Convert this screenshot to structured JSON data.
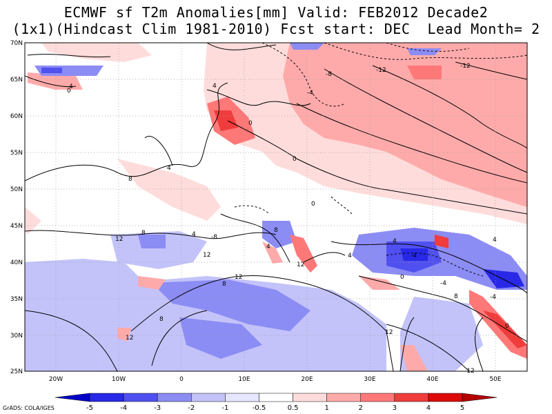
{
  "title": {
    "line1": "ECMWF sf T2m Anomalies[mm] Valid: FEB2012 Decade2",
    "line2": "(1x1)(Hindcast Clim 1981-2010) Fcst start: DEC  Lead Month= 2"
  },
  "map": {
    "lat_ticks": [
      "70N",
      "65N",
      "60N",
      "55N",
      "50N",
      "45N",
      "40N",
      "35N",
      "30N",
      "25N"
    ],
    "lon_ticks": [
      "20W",
      "10W",
      "0",
      "10E",
      "20E",
      "30E",
      "40E",
      "50E"
    ],
    "contour_labels": [
      "4",
      "0",
      "4",
      "0",
      "-8",
      "-12",
      "-12",
      "-4",
      "0",
      "4",
      "8",
      "0",
      "12",
      "8",
      "4",
      "-8",
      "12",
      "8",
      "4",
      "12",
      "4",
      "-4",
      "0",
      "4",
      "4",
      "8",
      "12",
      "8",
      "0",
      "-4",
      "12",
      "8",
      "-12",
      "12",
      "-4"
    ]
  },
  "colorbar": {
    "labels": [
      "-5",
      "-4",
      "-3",
      "-2",
      "-1",
      "-0.5",
      "0.5",
      "1",
      "2",
      "3",
      "4",
      "5"
    ],
    "colors": [
      "#0000c8",
      "#2828e6",
      "#5050f0",
      "#8c8cf5",
      "#c3c3fa",
      "#e6e6ff",
      "#ffffff",
      "#ffdcdc",
      "#ffaaaa",
      "#ff7878",
      "#f03c3c",
      "#dc0a0a",
      "#b40000"
    ]
  },
  "credit": "GrADS: COLA/IGES"
}
